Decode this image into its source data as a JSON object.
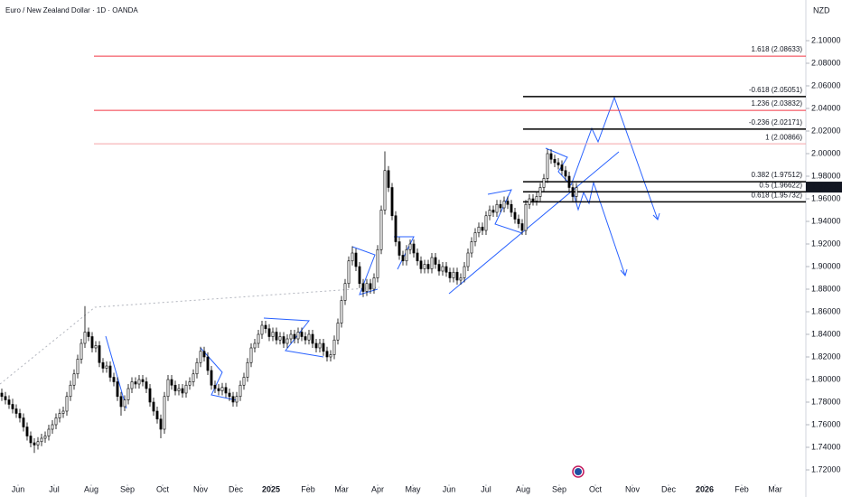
{
  "chart_data": {
    "type": "candlestick",
    "title": "Euro / New Zealand Dollar · 1D · OANDA",
    "currency": "NZD",
    "ylim": [
      1.696,
      2.136
    ],
    "yticks": [
      {
        "value": 1.72,
        "label": "1.72000"
      },
      {
        "value": 1.74,
        "label": "1.74000"
      },
      {
        "value": 1.76,
        "label": "1.76000"
      },
      {
        "value": 1.78,
        "label": "1.78000"
      },
      {
        "value": 1.8,
        "label": "1.80000"
      },
      {
        "value": 1.82,
        "label": "1.82000"
      },
      {
        "value": 1.84,
        "label": "1.84000"
      },
      {
        "value": 1.86,
        "label": "1.86000"
      },
      {
        "value": 1.88,
        "label": "1.88000"
      },
      {
        "value": 1.9,
        "label": "1.90000"
      },
      {
        "value": 1.92,
        "label": "1.92000"
      },
      {
        "value": 1.94,
        "label": "1.94000"
      },
      {
        "value": 1.96,
        "label": "1.96000"
      },
      {
        "value": 1.98,
        "label": "1.98000"
      },
      {
        "value": 2.0,
        "label": "2.00000"
      },
      {
        "value": 2.02,
        "label": "2.02000"
      },
      {
        "value": 2.04,
        "label": "2.04000"
      },
      {
        "value": 2.06,
        "label": "2.06000"
      },
      {
        "value": 2.08,
        "label": "2.08000"
      },
      {
        "value": 2.1,
        "label": "2.10000"
      }
    ],
    "xlim": [
      -0.5,
      222.5
    ],
    "xticks": [
      {
        "value": 4.5,
        "label": "Jun"
      },
      {
        "value": 14.5,
        "label": "Jul"
      },
      {
        "value": 24.75,
        "label": "Aug"
      },
      {
        "value": 34.75,
        "label": "Sep"
      },
      {
        "value": 44.5,
        "label": "Oct"
      },
      {
        "value": 55,
        "label": "Nov"
      },
      {
        "value": 64.75,
        "label": "Dec"
      },
      {
        "value": 74.5,
        "label": "2025"
      },
      {
        "value": 84.75,
        "label": "Feb"
      },
      {
        "value": 94,
        "label": "Mar"
      },
      {
        "value": 104,
        "label": "Apr"
      },
      {
        "value": 113.75,
        "label": "May"
      },
      {
        "value": 123.75,
        "label": "Jun"
      },
      {
        "value": 134,
        "label": "Jul"
      },
      {
        "value": 144.25,
        "label": "Aug"
      },
      {
        "value": 154.25,
        "label": "Sep"
      },
      {
        "value": 164.25,
        "label": "Oct"
      },
      {
        "value": 174.5,
        "label": "Nov"
      },
      {
        "value": 184.5,
        "label": "Dec"
      },
      {
        "value": 194.5,
        "label": "2026"
      },
      {
        "value": 204.75,
        "label": "Feb"
      },
      {
        "value": 214,
        "label": "Mar"
      }
    ],
    "last_price": {
      "value": 1.97036,
      "label": "1.97036"
    },
    "levels": [
      {
        "label": "1.618 (2.08633)",
        "value": 2.08633,
        "color": "#f23645"
      },
      {
        "label": "-0.618 (2.05051)",
        "value": 2.05051,
        "color": "#000000"
      },
      {
        "label": "1.236 (2.03832)",
        "value": 2.03832,
        "color": "#f23645"
      },
      {
        "label": "-0.236 (2.02171)",
        "value": 2.02171,
        "color": "#000000"
      },
      {
        "label": "1 (2.00866)",
        "value": 2.00866,
        "color": "#f5a3a9"
      },
      {
        "label": "0.382 (1.97512)",
        "value": 1.97512,
        "color": "#000000"
      },
      {
        "label": "0.5 (1.96622)",
        "value": 1.96622,
        "color": "#000000"
      },
      {
        "label": "0.618 (1.95732)",
        "value": 1.95732,
        "color": "#000000"
      }
    ],
    "candles": [
      [
        1.788,
        1.792,
        1.781,
        1.785
      ],
      [
        1.785,
        1.789,
        1.778,
        1.782
      ],
      [
        1.782,
        1.786,
        1.774,
        1.778
      ],
      [
        1.778,
        1.783,
        1.77,
        1.774
      ],
      [
        1.774,
        1.778,
        1.766,
        1.77
      ],
      [
        1.77,
        1.774,
        1.762,
        1.766
      ],
      [
        1.766,
        1.77,
        1.754,
        1.758
      ],
      [
        1.758,
        1.762,
        1.746,
        1.75
      ],
      [
        1.75,
        1.754,
        1.74,
        1.744
      ],
      [
        1.744,
        1.748,
        1.735,
        1.742
      ],
      [
        1.742,
        1.749,
        1.738,
        1.745
      ],
      [
        1.745,
        1.752,
        1.741,
        1.748
      ],
      [
        1.748,
        1.754,
        1.744,
        1.75
      ],
      [
        1.75,
        1.76,
        1.746,
        1.756
      ],
      [
        1.756,
        1.764,
        1.752,
        1.76
      ],
      [
        1.76,
        1.77,
        1.756,
        1.766
      ],
      [
        1.766,
        1.774,
        1.762,
        1.77
      ],
      [
        1.77,
        1.776,
        1.766,
        1.772
      ],
      [
        1.772,
        1.789,
        1.768,
        1.785
      ],
      [
        1.785,
        1.799,
        1.781,
        1.795
      ],
      [
        1.795,
        1.809,
        1.791,
        1.805
      ],
      [
        1.805,
        1.822,
        1.801,
        1.818
      ],
      [
        1.818,
        1.836,
        1.814,
        1.832
      ],
      [
        1.832,
        1.865,
        1.828,
        1.842
      ],
      [
        1.842,
        1.846,
        1.834,
        1.838
      ],
      [
        1.838,
        1.842,
        1.824,
        1.828
      ],
      [
        1.828,
        1.834,
        1.824,
        1.83
      ],
      [
        1.83,
        1.834,
        1.811,
        1.815
      ],
      [
        1.815,
        1.819,
        1.806,
        1.81
      ],
      [
        1.81,
        1.816,
        1.806,
        1.812
      ],
      [
        1.812,
        1.816,
        1.798,
        1.802
      ],
      [
        1.802,
        1.806,
        1.794,
        1.798
      ],
      [
        1.798,
        1.802,
        1.781,
        1.785
      ],
      [
        1.785,
        1.789,
        1.768,
        1.776
      ],
      [
        1.776,
        1.786,
        1.772,
        1.782
      ],
      [
        1.782,
        1.796,
        1.778,
        1.792
      ],
      [
        1.792,
        1.802,
        1.788,
        1.798
      ],
      [
        1.798,
        1.802,
        1.792,
        1.796
      ],
      [
        1.796,
        1.804,
        1.792,
        1.8
      ],
      [
        1.8,
        1.804,
        1.794,
        1.798
      ],
      [
        1.798,
        1.802,
        1.788,
        1.792
      ],
      [
        1.792,
        1.796,
        1.776,
        1.78
      ],
      [
        1.78,
        1.784,
        1.768,
        1.772
      ],
      [
        1.772,
        1.776,
        1.761,
        1.765
      ],
      [
        1.765,
        1.769,
        1.748,
        1.756
      ],
      [
        1.756,
        1.789,
        1.752,
        1.785
      ],
      [
        1.785,
        1.804,
        1.781,
        1.8
      ],
      [
        1.8,
        1.804,
        1.791,
        1.795
      ],
      [
        1.795,
        1.799,
        1.786,
        1.79
      ],
      [
        1.79,
        1.796,
        1.786,
        1.792
      ],
      [
        1.792,
        1.796,
        1.784,
        1.788
      ],
      [
        1.788,
        1.799,
        1.784,
        1.795
      ],
      [
        1.795,
        1.802,
        1.791,
        1.798
      ],
      [
        1.798,
        1.809,
        1.794,
        1.805
      ],
      [
        1.805,
        1.819,
        1.801,
        1.815
      ],
      [
        1.815,
        1.829,
        1.811,
        1.825
      ],
      [
        1.825,
        1.829,
        1.816,
        1.82
      ],
      [
        1.82,
        1.824,
        1.804,
        1.808
      ],
      [
        1.808,
        1.812,
        1.791,
        1.795
      ],
      [
        1.795,
        1.799,
        1.788,
        1.792
      ],
      [
        1.792,
        1.796,
        1.786,
        1.79
      ],
      [
        1.79,
        1.797,
        1.786,
        1.793
      ],
      [
        1.793,
        1.797,
        1.784,
        1.788
      ],
      [
        1.788,
        1.792,
        1.781,
        1.785
      ],
      [
        1.785,
        1.789,
        1.776,
        1.78
      ],
      [
        1.78,
        1.789,
        1.776,
        1.785
      ],
      [
        1.785,
        1.799,
        1.781,
        1.795
      ],
      [
        1.795,
        1.806,
        1.791,
        1.802
      ],
      [
        1.802,
        1.819,
        1.798,
        1.815
      ],
      [
        1.815,
        1.832,
        1.811,
        1.828
      ],
      [
        1.828,
        1.836,
        1.824,
        1.832
      ],
      [
        1.832,
        1.844,
        1.828,
        1.84
      ],
      [
        1.84,
        1.852,
        1.836,
        1.848
      ],
      [
        1.848,
        1.852,
        1.841,
        1.845
      ],
      [
        1.845,
        1.849,
        1.834,
        1.838
      ],
      [
        1.838,
        1.846,
        1.834,
        1.842
      ],
      [
        1.842,
        1.846,
        1.831,
        1.835
      ],
      [
        1.835,
        1.842,
        1.831,
        1.838
      ],
      [
        1.838,
        1.842,
        1.828,
        1.832
      ],
      [
        1.832,
        1.84,
        1.828,
        1.836
      ],
      [
        1.836,
        1.844,
        1.832,
        1.84
      ],
      [
        1.84,
        1.844,
        1.832,
        1.836
      ],
      [
        1.836,
        1.846,
        1.832,
        1.842
      ],
      [
        1.842,
        1.846,
        1.834,
        1.838
      ],
      [
        1.838,
        1.842,
        1.831,
        1.835
      ],
      [
        1.835,
        1.844,
        1.831,
        1.84
      ],
      [
        1.84,
        1.844,
        1.828,
        1.832
      ],
      [
        1.832,
        1.836,
        1.824,
        1.828
      ],
      [
        1.828,
        1.836,
        1.824,
        1.832
      ],
      [
        1.832,
        1.836,
        1.821,
        1.825
      ],
      [
        1.825,
        1.829,
        1.816,
        1.82
      ],
      [
        1.82,
        1.826,
        1.816,
        1.822
      ],
      [
        1.822,
        1.839,
        1.818,
        1.835
      ],
      [
        1.835,
        1.854,
        1.831,
        1.85
      ],
      [
        1.85,
        1.874,
        1.846,
        1.87
      ],
      [
        1.87,
        1.889,
        1.866,
        1.885
      ],
      [
        1.885,
        1.909,
        1.881,
        1.905
      ],
      [
        1.905,
        1.918,
        1.901,
        1.912
      ],
      [
        1.912,
        1.916,
        1.896,
        1.9
      ],
      [
        1.9,
        1.904,
        1.881,
        1.885
      ],
      [
        1.885,
        1.889,
        1.873,
        1.878
      ],
      [
        1.878,
        1.889,
        1.874,
        1.885
      ],
      [
        1.885,
        1.889,
        1.876,
        1.88
      ],
      [
        1.88,
        1.894,
        1.876,
        1.89
      ],
      [
        1.89,
        1.919,
        1.886,
        1.915
      ],
      [
        1.915,
        1.954,
        1.911,
        1.95
      ],
      [
        1.95,
        2.002,
        1.946,
        1.985
      ],
      [
        1.985,
        1.989,
        1.966,
        1.97
      ],
      [
        1.97,
        1.974,
        1.941,
        1.945
      ],
      [
        1.945,
        1.949,
        1.918,
        1.922
      ],
      [
        1.922,
        1.926,
        1.906,
        1.91
      ],
      [
        1.91,
        1.914,
        1.901,
        1.905
      ],
      [
        1.905,
        1.919,
        1.901,
        1.915
      ],
      [
        1.915,
        1.924,
        1.911,
        1.92
      ],
      [
        1.92,
        1.924,
        1.908,
        1.912
      ],
      [
        1.912,
        1.916,
        1.901,
        1.905
      ],
      [
        1.905,
        1.909,
        1.894,
        1.898
      ],
      [
        1.898,
        1.906,
        1.894,
        1.902
      ],
      [
        1.902,
        1.906,
        1.894,
        1.898
      ],
      [
        1.898,
        1.912,
        1.894,
        1.908
      ],
      [
        1.908,
        1.912,
        1.898,
        1.902
      ],
      [
        1.902,
        1.906,
        1.892,
        1.896
      ],
      [
        1.896,
        1.904,
        1.892,
        1.9
      ],
      [
        1.9,
        1.904,
        1.891,
        1.895
      ],
      [
        1.895,
        1.899,
        1.886,
        1.89
      ],
      [
        1.89,
        1.899,
        1.886,
        1.895
      ],
      [
        1.895,
        1.899,
        1.884,
        1.888
      ],
      [
        1.888,
        1.894,
        1.884,
        1.89
      ],
      [
        1.89,
        1.904,
        1.886,
        1.9
      ],
      [
        1.9,
        1.916,
        1.896,
        1.912
      ],
      [
        1.912,
        1.926,
        1.908,
        1.922
      ],
      [
        1.922,
        1.934,
        1.918,
        1.93
      ],
      [
        1.93,
        1.939,
        1.926,
        1.935
      ],
      [
        1.935,
        1.939,
        1.928,
        1.932
      ],
      [
        1.932,
        1.949,
        1.928,
        1.945
      ],
      [
        1.945,
        1.954,
        1.941,
        1.95
      ],
      [
        1.95,
        1.954,
        1.944,
        1.948
      ],
      [
        1.948,
        1.959,
        1.944,
        1.955
      ],
      [
        1.955,
        1.959,
        1.948,
        1.952
      ],
      [
        1.952,
        1.962,
        1.948,
        1.958
      ],
      [
        1.958,
        1.962,
        1.951,
        1.955
      ],
      [
        1.955,
        1.959,
        1.944,
        1.948
      ],
      [
        1.948,
        1.952,
        1.938,
        1.942
      ],
      [
        1.942,
        1.946,
        1.934,
        1.938
      ],
      [
        1.938,
        1.942,
        1.928,
        1.932
      ],
      [
        1.932,
        1.959,
        1.928,
        1.955
      ],
      [
        1.955,
        1.964,
        1.951,
        1.96
      ],
      [
        1.96,
        1.964,
        1.954,
        1.958
      ],
      [
        1.958,
        1.966,
        1.954,
        1.962
      ],
      [
        1.962,
        1.974,
        1.958,
        1.97
      ],
      [
        1.97,
        1.982,
        1.966,
        1.978
      ],
      [
        1.978,
        2.004,
        1.974,
        2.0
      ],
      [
        2.0,
        2.004,
        1.991,
        1.995
      ],
      [
        1.995,
        1.999,
        1.988,
        1.992
      ],
      [
        1.992,
        1.996,
        1.986,
        1.99
      ],
      [
        1.99,
        1.994,
        1.981,
        1.985
      ],
      [
        1.985,
        1.989,
        1.976,
        1.98
      ],
      [
        1.98,
        1.984,
        1.966,
        1.97
      ],
      [
        1.97,
        1.974,
        1.958,
        1.962
      ],
      [
        1.962,
        1.974,
        1.958,
        1.97
      ]
    ]
  }
}
